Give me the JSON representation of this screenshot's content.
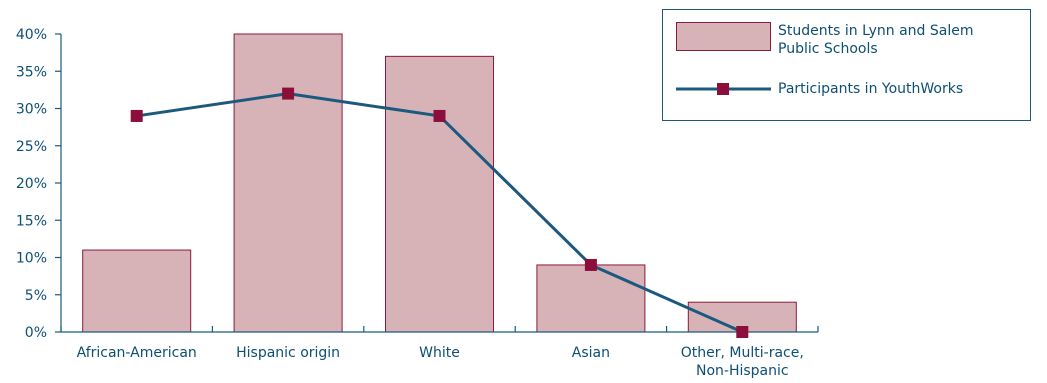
{
  "chart_data": {
    "type": "bar",
    "categories": [
      "African-American",
      "Hispanic origin",
      "White",
      "Asian",
      "Other, Multi-race, Non-Hispanic"
    ],
    "category_lines": [
      [
        "African-American"
      ],
      [
        "Hispanic origin"
      ],
      [
        "White"
      ],
      [
        "Asian"
      ],
      [
        "Other, Multi-race,",
        "Non-Hispanic"
      ]
    ],
    "series": [
      {
        "name": "Students in Lynn and Salem Public Schools",
        "kind": "bar",
        "values": [
          11,
          40,
          37,
          9,
          4
        ]
      },
      {
        "name": "Participants in YouthWorks",
        "kind": "line",
        "values": [
          29,
          32,
          29,
          9,
          0
        ]
      }
    ],
    "y_ticks": [
      "0%",
      "5%",
      "10%",
      "15%",
      "20%",
      "25%",
      "30%",
      "35%",
      "40%"
    ],
    "ylim": [
      0,
      40
    ],
    "legend_position": "top-right",
    "grid": false,
    "colors": {
      "bar_fill": "#d7b3b8",
      "bar_stroke": "#8b1a3c",
      "line": "#1b5a7e",
      "marker": "#8b0f3a",
      "axis": "#1b5a7e",
      "text": "#0d4f75"
    }
  },
  "legend": {
    "bar_label_lines": [
      "Students in Lynn and Salem",
      "Public Schools"
    ],
    "line_label": "Participants in YouthWorks"
  }
}
